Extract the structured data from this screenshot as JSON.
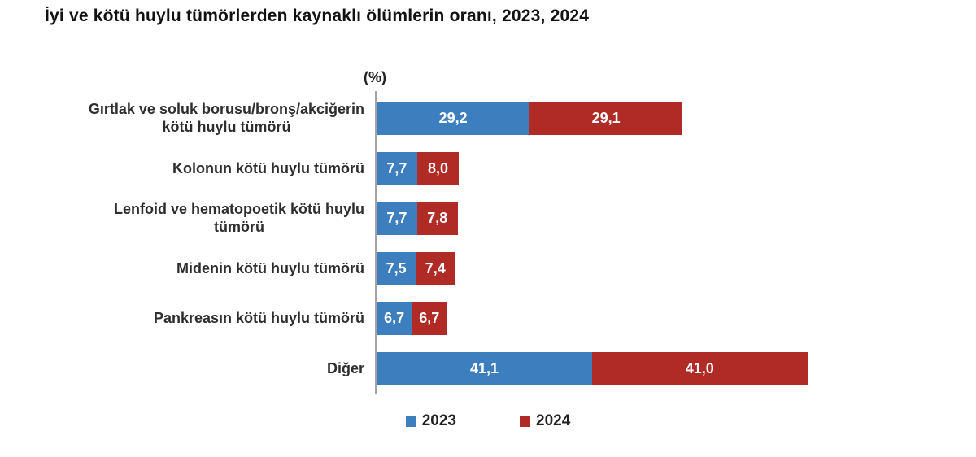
{
  "title": "İyi ve kötü huylu tümörlerden kaynaklı ölümlerin oranı, 2023, 2024",
  "chart_data": {
    "type": "bar",
    "orientation": "horizontal",
    "stacked": true,
    "title": "İyi ve kötü huylu tümörlerden kaynaklı ölümlerin oranı, 2023, 2024",
    "unit_label": "(%)",
    "xlabel": "",
    "ylabel": "",
    "grid": false,
    "legend_position": "bottom",
    "decimal_separator": ",",
    "categories": [
      "Gırtlak ve soluk borusu/bronş/akciğerin\nkötü huylu tümörü",
      "Kolonun kötü huylu tümörü",
      "Lenfoid ve hematopoetik kötü huylu\ntümörü",
      "Midenin kötü huylu tümörü",
      "Pankreasın kötü huylu tümörü",
      "Diğer"
    ],
    "series": [
      {
        "name": "2023",
        "color": "#3d7ebe",
        "values": [
          29.2,
          7.7,
          7.7,
          7.5,
          6.7,
          41.1
        ]
      },
      {
        "name": "2024",
        "color": "#b02b25",
        "values": [
          29.1,
          8.0,
          7.8,
          7.4,
          6.7,
          41.0
        ]
      }
    ],
    "value_label_color": "#ffffff",
    "axis_color": "#a3a3a3"
  }
}
